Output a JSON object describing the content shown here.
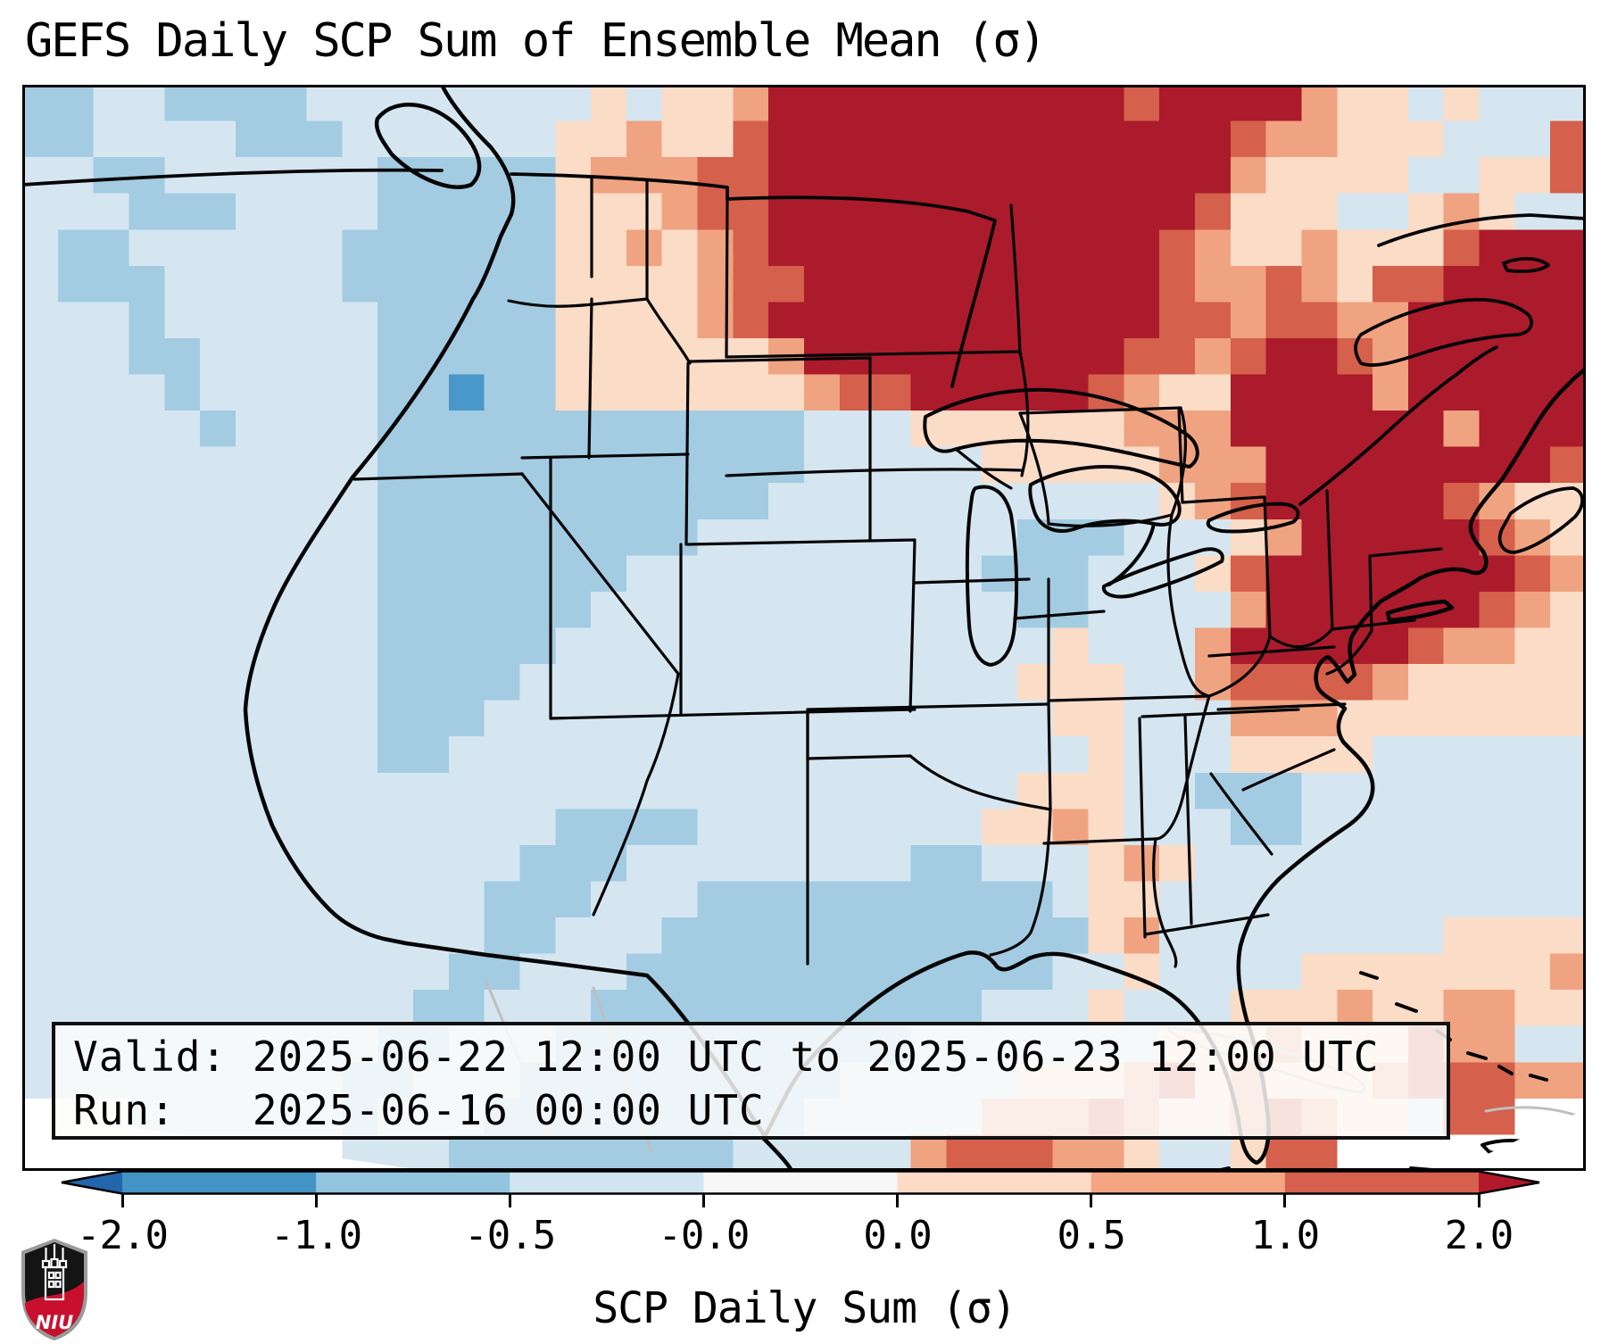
{
  "title": "GEFS Daily SCP Sum of Ensemble Mean (σ)",
  "info_box": {
    "line1": "Valid: 2025-06-22 12:00 UTC to 2025-06-23 12:00 UTC",
    "line2": "Run:   2025-06-16 00:00 UTC"
  },
  "colorbar": {
    "label": "SCP Daily Sum (σ)",
    "ticks": [
      "-2.0",
      "-1.0",
      "-0.5",
      "-0.0",
      "0.0",
      "0.5",
      "1.0",
      "2.0"
    ],
    "segment_colors": [
      "#4393c3",
      "#92c5de",
      "#d1e5f0",
      "#f7f7f7",
      "#fddbc7",
      "#f4a582",
      "#d6604d"
    ],
    "left_arrow_color": "#2166ac",
    "right_arrow_color": "#b2182b",
    "outline_color": "#000000"
  },
  "logo": {
    "text": "NIU",
    "shield_black": "#141414",
    "shield_red": "#c8102e",
    "shield_border": "#9a9a9a"
  },
  "chart_data": {
    "type": "heatmap",
    "title": "GEFS Daily SCP Sum of Ensemble Mean (σ)",
    "colorbar_label": "SCP Daily Sum (σ)",
    "valid_period": "2025-06-22 12:00 UTC to 2025-06-23 12:00 UTC",
    "run_time": "2025-06-16 00:00 UTC",
    "colorbar_levels": [
      -2.0,
      -1.0,
      -0.5,
      -0.0,
      0.0,
      0.5,
      1.0,
      2.0
    ],
    "colorbar_extend": "both",
    "legend_position": "bottom",
    "palette": {
      "b": "#4a97c9",
      "c": "#a3cce2",
      "d": "#d5e6f1",
      "e": "#f6f5f3",
      "f": "#fbdcc7",
      "g": "#f0a381",
      "h": "#d5604c",
      "i": "#ab1b2b",
      "w": "#ffffff"
    },
    "palette_sigma_values": {
      "b": -1.2,
      "c": -0.6,
      "d": -0.2,
      "e": 0.0,
      "f": 0.3,
      "g": 0.7,
      "h": 1.3,
      "i": 2.2,
      "w": null
    },
    "grid": {
      "cols": 44,
      "rows": 30,
      "cell_values": [
        "ccddccccddddddddfdffgiiiiiiiiiihiiiigffdfddd",
        "ccddddcccddddddffgffhiiiiiiiiiiiiihggfffdddh",
        "ddccddddddcccccfggghhiiiiiiiiiiiiigffffddffh",
        "dddcccddddcccccfffghhiiiiiiiiiiiihfffddfgfdd",
        "dccddddddccccccffgfghiiiiiiiiiiihgffgfffhiii",
        "dcccdddddccccccffffghhiiiiiiiiiihgghgfhhiiii",
        "dddcddddddcccccffffghiiiiiiiiiiihhghhggiiiii",
        "dddccdddddcccccffffffgiiiiiiiiihhghiihgiiiii",
        "ddddcdddddccbccfffffffghhiiiiihgffiiiigiiiii",
        "dddddcddddccccccccccccdddffffffgggiiiiiigiii",
        "ddddddddddccccccccccccdddddfffffgggiiiiiiiih",
        "ddddddddddcccccccccccdddddddddddfghiiiiihgff",
        "ddddddddddcccccccccdddddddddcccdddfgiiiiihgf",
        "ddddddddddcccccccddddddddddcccdddfhiiiiiiihg",
        "ddddddddddccccccddddddddddddccddddgiiiiiihgf",
        "ddddddddddcccccddddddddddddddfdddgiiiiihggff",
        "ddddddddddccccddddddddddddddfffddghhhhgfffff",
        "ddddddddddcccddddddddddddddddffdddgggfffffff",
        "ddddddddddccddddddddddddddddddfdddffffdddddd",
        "ddddddddddddddddddddddddddddfffddcccdddddddd",
        "dddddddddddddddccccddddddddffgfdddccdddddddd",
        "ddddddddddddddcccddddddddccdddfgfddddddddddd",
        "dddddddddddddcccdddccccccccccdffdddddddddddd",
        "dddddddddddddccdddccccccccccccfgddddddddffff",
        "ddddddddddddccdddccccccccccccddfddddfffffffg",
        "dddddddddddccdddcccccccccccdddfdddfffgffggff",
        "ddddddddddccdddccccccccccdddddddfffgfffhggdd",
        "dddddddddccdddcccccccccdddddfffghfgfffghhhgg",
        "wwwddddddcdddcccccccccdddddggghgffghgffdhhww",
        "wwwwwwwwwdddccccccccdddddghhhggfddfhhwwwwwww"
      ]
    }
  }
}
